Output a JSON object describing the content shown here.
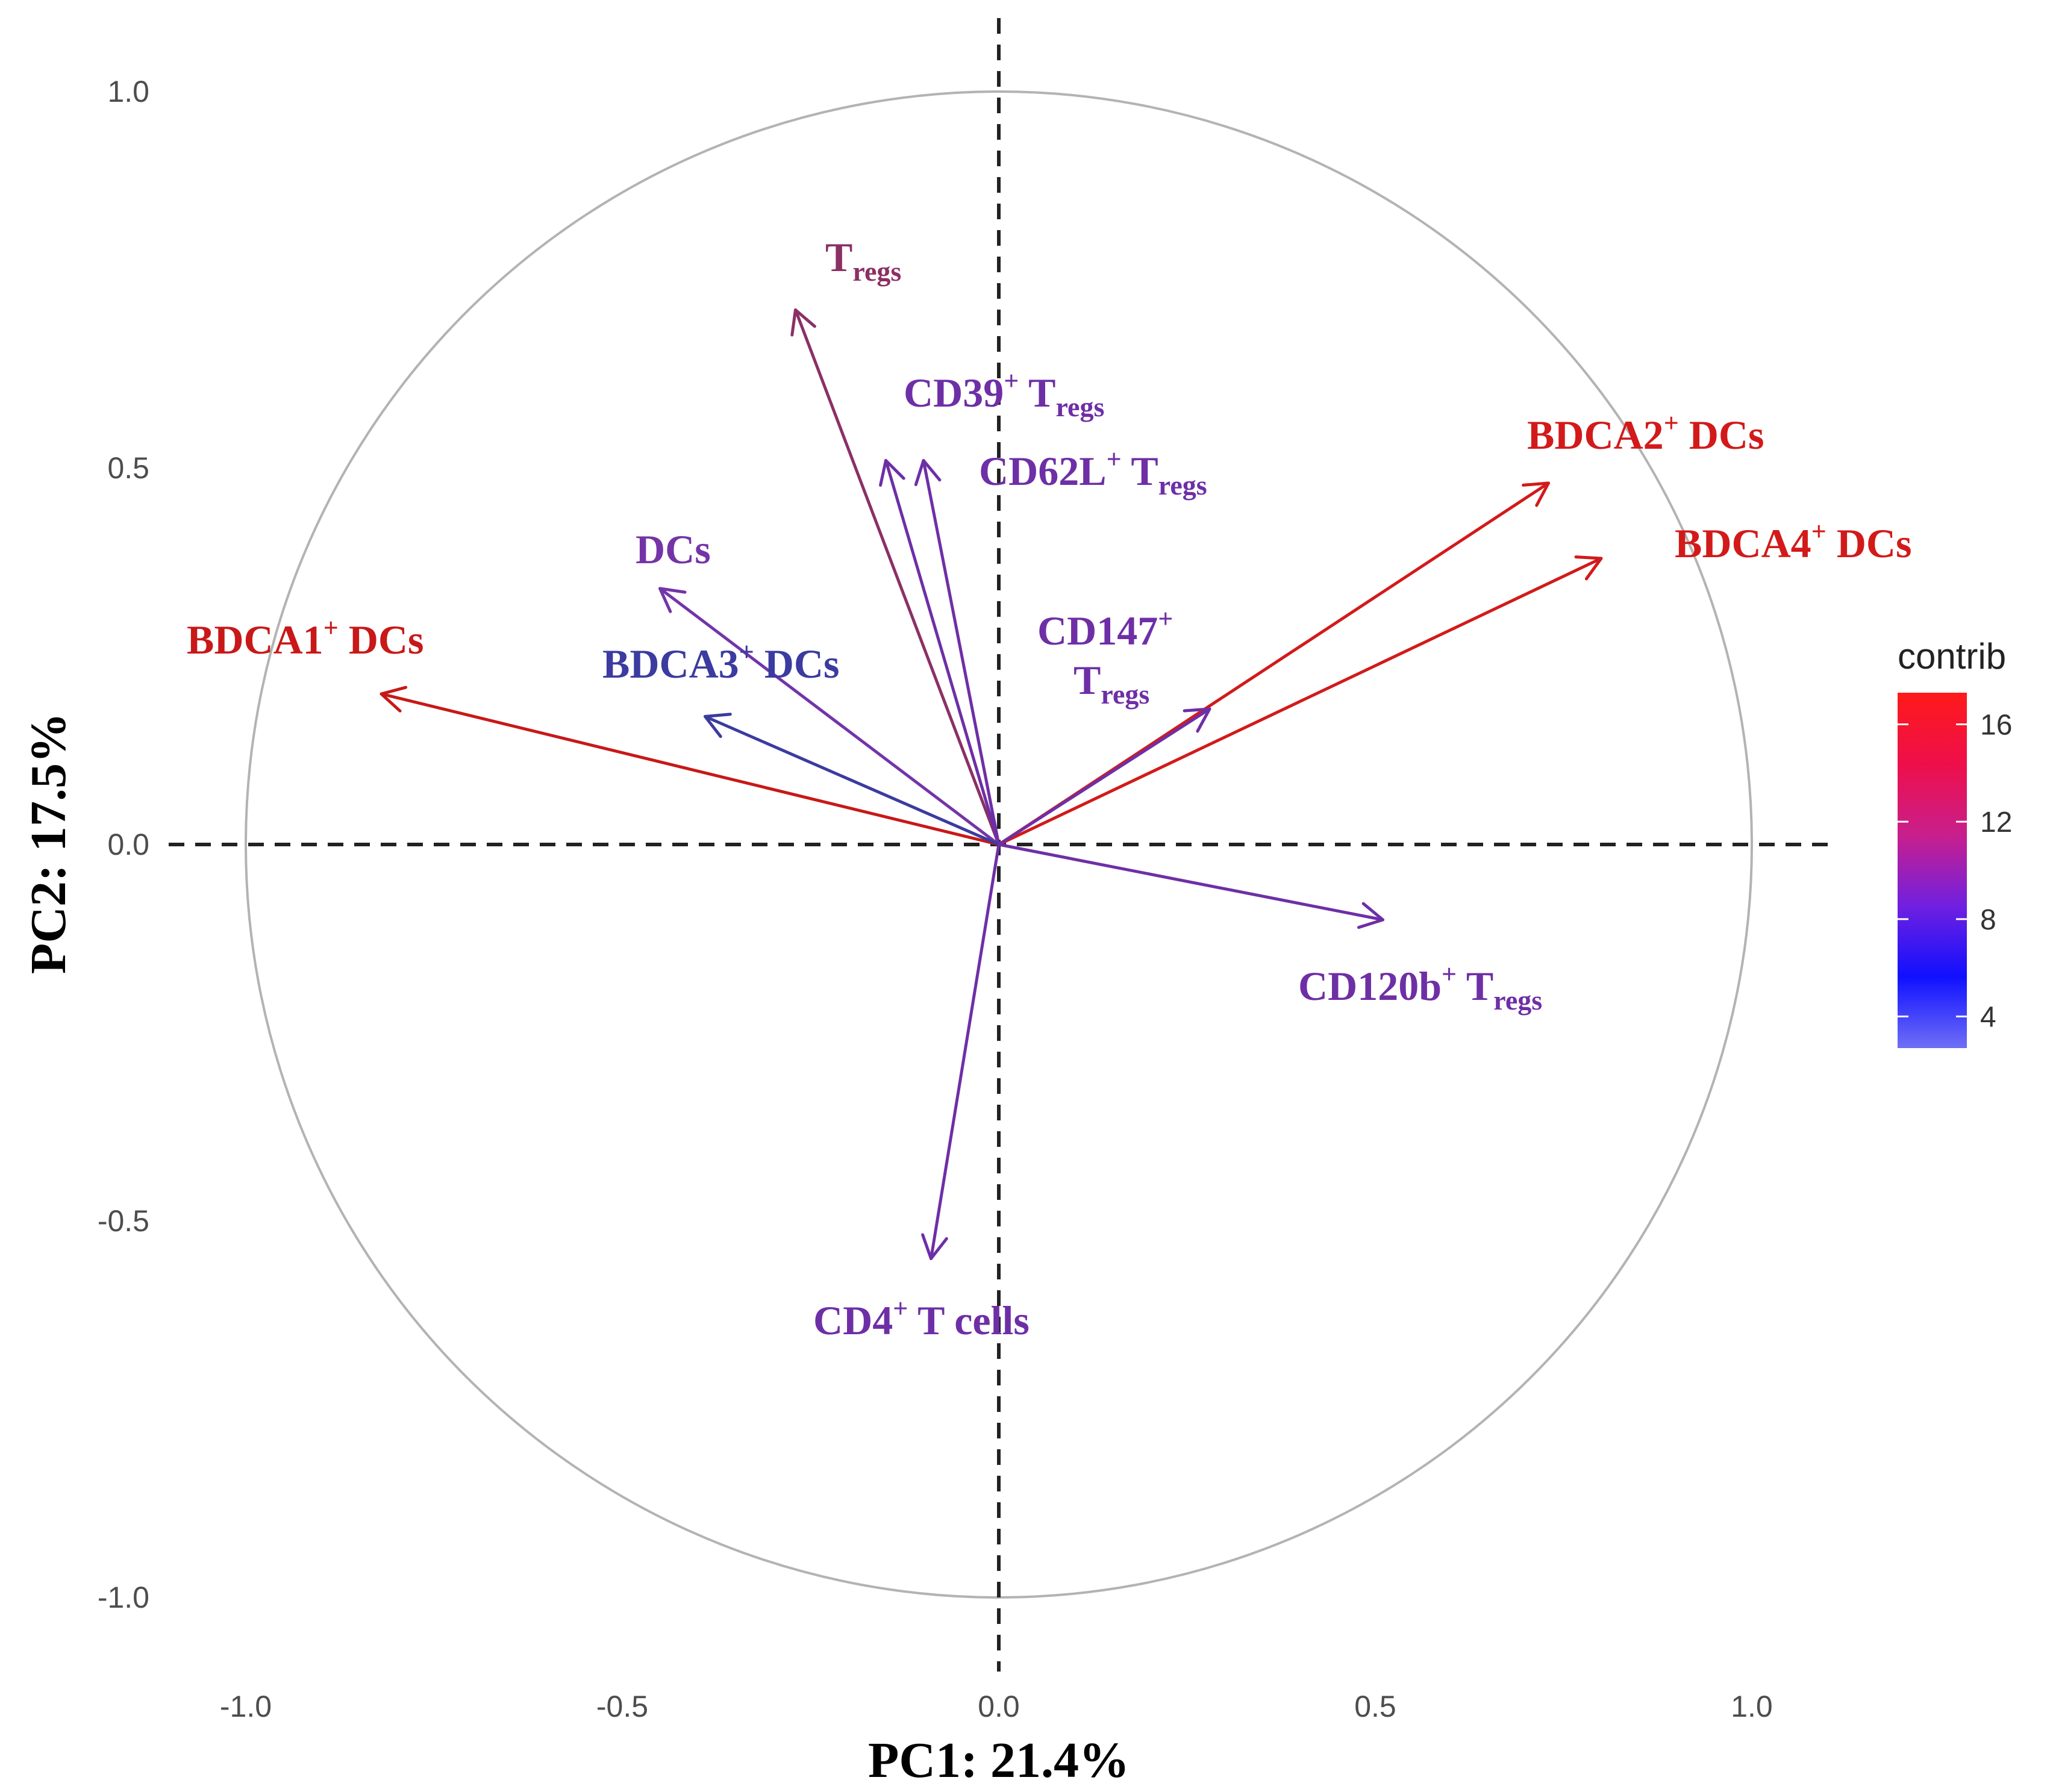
{
  "chart_data": {
    "type": "correlation-circle",
    "xlabel": "PC1: 21.4%",
    "ylabel": "PC2: 17.5%",
    "xlim": [
      -1.1,
      1.1
    ],
    "ylim": [
      -1.1,
      1.1
    ],
    "x_ticks": [
      "-1.0",
      "-0.5",
      "0.0",
      "0.5",
      "1.0"
    ],
    "y_ticks": [
      "1.0",
      "0.5",
      "0.0",
      "-0.5",
      "-1.0"
    ],
    "grid": false,
    "reference_lines": [
      "x = 0",
      "y = 0"
    ],
    "unit_circle": true,
    "legend": {
      "title": "contrib",
      "placement": "right",
      "ticks": [
        "16",
        "12",
        "8",
        "4"
      ],
      "tick_values": [
        16,
        12,
        8,
        4
      ],
      "range": [
        2.7,
        17.3
      ],
      "colors": [
        "#6f6ff6",
        "#1010ff",
        "#7020e0",
        "#c81f8c",
        "#ee0f4a",
        "#ff1a1a"
      ]
    },
    "variables": [
      {
        "label": "T",
        "sub": "regs",
        "sup": "",
        "x": -0.27,
        "y": 0.71,
        "contrib": 11.5,
        "color": "#8b3065"
      },
      {
        "label": "CD39",
        "sup": "+",
        "sub_prefix": " T",
        "sub": "regs",
        "x": -0.15,
        "y": 0.51,
        "contrib": 7.0,
        "color": "#6e2fa6"
      },
      {
        "label": "CD62L",
        "sup": "+",
        "sub_prefix": " T",
        "sub": "regs",
        "x": -0.1,
        "y": 0.51,
        "contrib": 7.0,
        "color": "#6e2fa6"
      },
      {
        "label": "DCs",
        "x": -0.45,
        "y": 0.34,
        "contrib": 6.5,
        "color": "#7434a8"
      },
      {
        "label": "BDCA1",
        "sup": "+",
        "suffix": " DCs",
        "x": -0.82,
        "y": 0.2,
        "contrib": 15.0,
        "color": "#c81818"
      },
      {
        "label": "BDCA3",
        "sup": "+",
        "suffix": " DCs",
        "x": -0.39,
        "y": 0.17,
        "contrib": 5.5,
        "color": "#3b3ba0"
      },
      {
        "label": "BDCA2",
        "sup": "+",
        "suffix": " DCs",
        "x": 0.73,
        "y": 0.48,
        "contrib": 16.5,
        "color": "#d21a1a"
      },
      {
        "label": "BDCA4",
        "sup": "+",
        "suffix": " DCs",
        "x": 0.8,
        "y": 0.38,
        "contrib": 15.5,
        "color": "#d21a1a"
      },
      {
        "label": "CD147",
        "sup": "+",
        "line2": "T",
        "sub": "regs",
        "x": 0.28,
        "y": 0.18,
        "contrib": 6.0,
        "color": "#6e2fa6"
      },
      {
        "label": "CD120b",
        "sup": "+",
        "sub_prefix": " T",
        "sub": "regs",
        "x": 0.51,
        "y": -0.1,
        "contrib": 6.5,
        "color": "#6e2fa6"
      },
      {
        "label": "CD4",
        "sup": "+",
        "suffix": " T cells",
        "x": -0.09,
        "y": -0.55,
        "contrib": 7.0,
        "color": "#6e2fa6"
      }
    ]
  }
}
